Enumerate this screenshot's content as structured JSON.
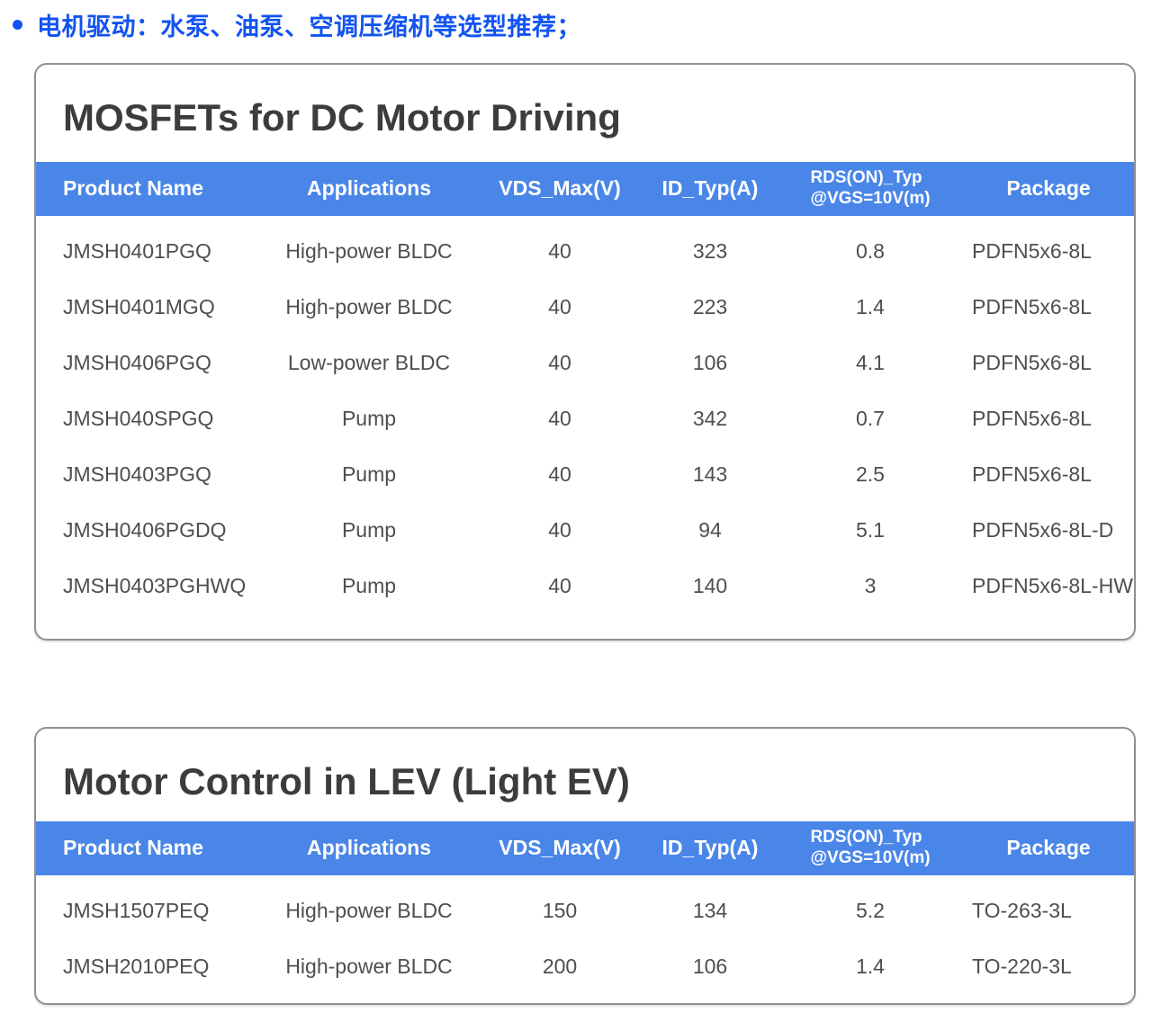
{
  "bullet": {
    "text": "电机驱动：水泵、油泵、空调压缩机等选型推荐；"
  },
  "colors": {
    "accent_blue_header": "#4a86e8",
    "bullet_blue": "#1254f0",
    "title_gray": "#3c3c3c",
    "body_text_gray": "#4e4e4e",
    "card_border_gray": "#919191"
  },
  "tables": [
    {
      "title": "MOSFETs for DC Motor Driving",
      "headers": [
        {
          "label": "Product Name"
        },
        {
          "label": "Applications"
        },
        {
          "label": "VDS_Max(V)"
        },
        {
          "label": "ID_Typ(A)"
        },
        {
          "label": "RDS(ON)_Typ",
          "line2": "@VGS=10V(m)"
        },
        {
          "label": "Package"
        }
      ],
      "rows": [
        [
          "JMSH0401PGQ",
          "High-power BLDC",
          "40",
          "323",
          "0.8",
          "PDFN5x6-8L"
        ],
        [
          "JMSH0401MGQ",
          "High-power BLDC",
          "40",
          "223",
          "1.4",
          "PDFN5x6-8L"
        ],
        [
          "JMSH0406PGQ",
          "Low-power BLDC",
          "40",
          "106",
          "4.1",
          "PDFN5x6-8L"
        ],
        [
          "JMSH040SPGQ",
          "Pump",
          "40",
          "342",
          "0.7",
          "PDFN5x6-8L"
        ],
        [
          "JMSH0403PGQ",
          "Pump",
          "40",
          "143",
          "2.5",
          "PDFN5x6-8L"
        ],
        [
          "JMSH0406PGDQ",
          "Pump",
          "40",
          "94",
          "5.1",
          "PDFN5x6-8L-D"
        ],
        [
          "JMSH0403PGHWQ",
          "Pump",
          "40",
          "140",
          "3",
          "PDFN5x6-8L-HW"
        ]
      ]
    },
    {
      "title": "Motor Control in LEV (Light EV)",
      "headers": [
        {
          "label": "Product Name"
        },
        {
          "label": "Applications"
        },
        {
          "label": "VDS_Max(V)"
        },
        {
          "label": "ID_Typ(A)"
        },
        {
          "label": "RDS(ON)_Typ",
          "line2": "@VGS=10V(m)"
        },
        {
          "label": "Package"
        }
      ],
      "rows": [
        [
          "JMSH1507PEQ",
          "High-power BLDC",
          "150",
          "134",
          "5.2",
          "TO-263-3L"
        ],
        [
          "JMSH2010PEQ",
          "High-power BLDC",
          "200",
          "106",
          "1.4",
          "TO-220-3L"
        ]
      ]
    }
  ]
}
